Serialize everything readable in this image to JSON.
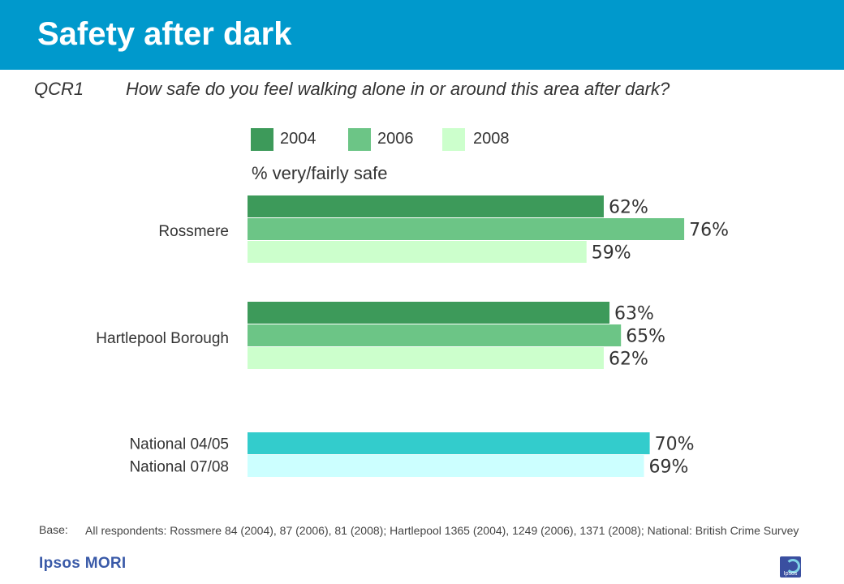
{
  "title": "Safety after dark",
  "question_code": "QCR1",
  "question_text": "How safe do you feel walking alone in or around this area after dark?",
  "legend": [
    {
      "label": "2004",
      "color": "#3d9a5a"
    },
    {
      "label": "2006",
      "color": "#6cc586"
    },
    {
      "label": "2008",
      "color": "#ccffcc"
    }
  ],
  "measure_label": "% very/fairly safe",
  "chart_data": {
    "type": "bar",
    "orientation": "horizontal",
    "xlim": [
      0,
      100
    ],
    "grid": false,
    "legend_position": "top",
    "groups": [
      {
        "label": "Rossmere",
        "bars": [
          {
            "series": "2004",
            "value": 62,
            "label": "62%",
            "color": "#3d9a5a"
          },
          {
            "series": "2006",
            "value": 76,
            "label": "76%",
            "color": "#6cc586"
          },
          {
            "series": "2008",
            "value": 59,
            "label": "59%",
            "color": "#ccffcc"
          }
        ]
      },
      {
        "label": "Hartlepool Borough",
        "bars": [
          {
            "series": "2004",
            "value": 63,
            "label": "63%",
            "color": "#3d9a5a"
          },
          {
            "series": "2006",
            "value": 65,
            "label": "65%",
            "color": "#6cc586"
          },
          {
            "series": "2008",
            "value": 62,
            "label": "62%",
            "color": "#ccffcc"
          }
        ]
      },
      {
        "label": "National",
        "bars": [
          {
            "series": "National 04/05",
            "category": "National 04/05",
            "value": 70,
            "label": "70%",
            "color": "#33cccc"
          },
          {
            "series": "National 07/08",
            "category": "National 07/08",
            "value": 69,
            "label": "69%",
            "color": "#ccffff"
          }
        ]
      }
    ]
  },
  "footer": {
    "base_label": "Base:",
    "base_text": "All respondents: Rossmere 84 (2004), 87 (2006), 81 (2008); Hartlepool 1365 (2004), 1249 (2006), 1371 (2008); National: British Crime Survey",
    "logo_text": "Ipsos MORI",
    "logo_mark_text": "Ipsos",
    "logo_mark_icon": "ipsos-logo-icon"
  }
}
